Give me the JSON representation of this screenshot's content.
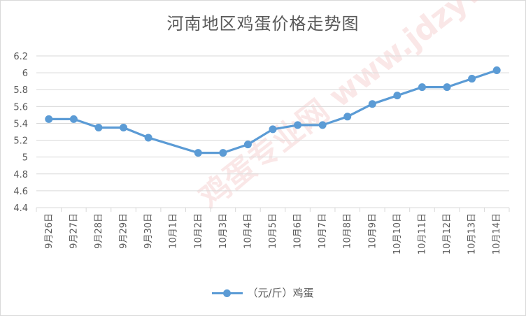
{
  "chart_data": {
    "type": "line",
    "title": "河南地区鸡蛋价格走势图",
    "categories": [
      "9月26日",
      "9月27日",
      "9月28日",
      "9月29日",
      "9月30日",
      "10月1日",
      "10月2日",
      "10月3日",
      "10月4日",
      "10月5日",
      "10月6日",
      "10月7日",
      "10月8日",
      "10月9日",
      "10月10日",
      "10月11日",
      "10月12日",
      "10月13日",
      "10月14日"
    ],
    "series": [
      {
        "name": "（元/斤）鸡蛋",
        "values": [
          5.45,
          5.45,
          5.35,
          5.35,
          5.23,
          null,
          5.05,
          5.05,
          5.15,
          5.33,
          5.38,
          5.38,
          5.48,
          5.63,
          5.73,
          5.83,
          5.83,
          5.93,
          6.03
        ]
      }
    ],
    "ylim": [
      4.4,
      6.2
    ],
    "yticks": [
      "4.4",
      "4.6",
      "4.8",
      "5",
      "5.2",
      "5.4",
      "5.6",
      "5.8",
      "6",
      "6.2"
    ],
    "grid": true,
    "legend_position": "bottom",
    "series_color": "#5b9bd5",
    "watermark": "鸡蛋专业网 www.jdzyw.com"
  }
}
